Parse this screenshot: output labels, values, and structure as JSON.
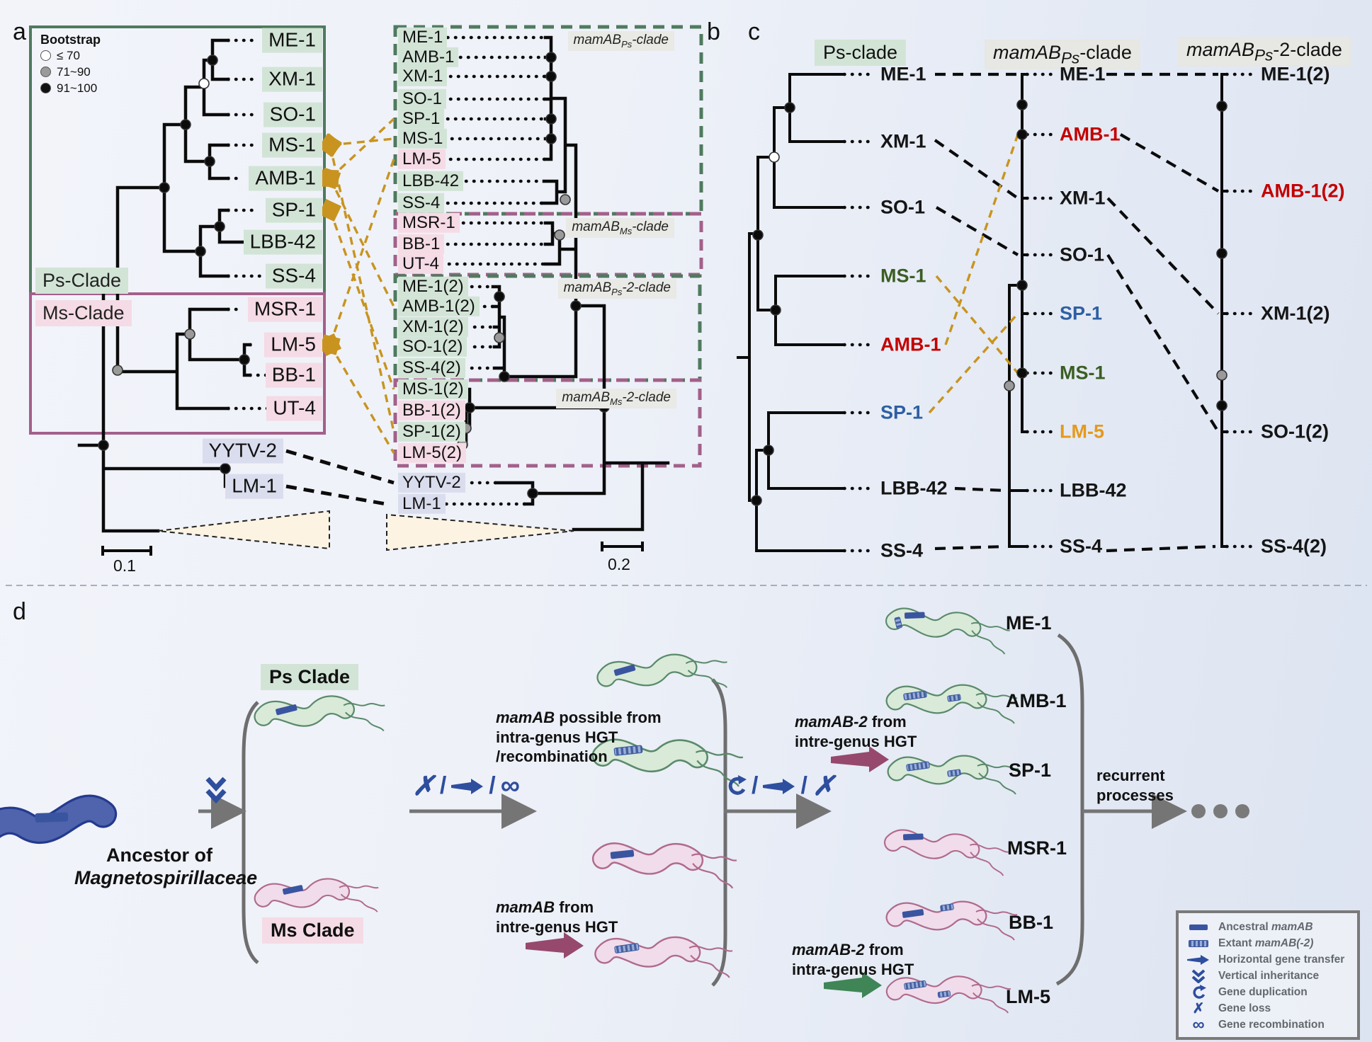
{
  "panel_letters": {
    "a": "a",
    "b": "b",
    "c": "c",
    "d": "d"
  },
  "bootstrap_legend": {
    "title": "Bootstrap",
    "items": [
      {
        "symbol": "open-circle",
        "label": "≤ 70"
      },
      {
        "symbol": "gray-circle",
        "label": "71~90"
      },
      {
        "symbol": "black-circle",
        "label": "91~100"
      }
    ]
  },
  "panel_a": {
    "clade_boxes": [
      {
        "label": "Ps-Clade",
        "bg": "green"
      },
      {
        "label": "Ms-Clade",
        "bg": "pink"
      }
    ],
    "tips": [
      {
        "label": "ME-1",
        "bg": "green"
      },
      {
        "label": "XM-1",
        "bg": "green"
      },
      {
        "label": "SO-1",
        "bg": "green"
      },
      {
        "label": "MS-1",
        "bg": "green"
      },
      {
        "label": "AMB-1",
        "bg": "green"
      },
      {
        "label": "SP-1",
        "bg": "green"
      },
      {
        "label": "LBB-42",
        "bg": "green"
      },
      {
        "label": "SS-4",
        "bg": "green"
      },
      {
        "label": "MSR-1",
        "bg": "pink"
      },
      {
        "label": "LM-5",
        "bg": "pink"
      },
      {
        "label": "BB-1",
        "bg": "pink"
      },
      {
        "label": "UT-4",
        "bg": "pink"
      },
      {
        "label": "YYTV-2",
        "bg": "lav"
      },
      {
        "label": "LM-1",
        "bg": "lav"
      }
    ],
    "scale_label": "0.1"
  },
  "panel_b": {
    "clade_labels": [
      [
        {
          "t": "mamAB",
          "i": true
        },
        {
          "t": "Ps",
          "sub": true
        },
        {
          "t": "-clade",
          "i": true
        }
      ],
      [
        {
          "t": "mamAB",
          "i": true
        },
        {
          "t": "Ms",
          "sub": true
        },
        {
          "t": "-clade"
        }
      ],
      [
        {
          "t": "mamAB",
          "i": true
        },
        {
          "t": "Ps",
          "sub": true
        },
        {
          "t": "-2-clade",
          "i": true
        }
      ],
      [
        {
          "t": "mamAB",
          "i": true
        },
        {
          "t": "Ms",
          "sub": true
        },
        {
          "t": "-2-clade"
        }
      ]
    ],
    "tips": [
      {
        "label": "ME-1",
        "bg": "green"
      },
      {
        "label": "AMB-1",
        "bg": "green"
      },
      {
        "label": "XM-1",
        "bg": "green"
      },
      {
        "label": "SO-1",
        "bg": "green"
      },
      {
        "label": "SP-1",
        "bg": "green"
      },
      {
        "label": "MS-1",
        "bg": "green"
      },
      {
        "label": "LM-5",
        "bg": "pink"
      },
      {
        "label": "LBB-42",
        "bg": "green"
      },
      {
        "label": "SS-4",
        "bg": "green"
      },
      {
        "label": "MSR-1",
        "bg": "pink"
      },
      {
        "label": "BB-1",
        "bg": "pink"
      },
      {
        "label": "UT-4",
        "bg": "pink"
      },
      {
        "label": "ME-1(2)",
        "bg": "green"
      },
      {
        "label": "AMB-1(2)",
        "bg": "green"
      },
      {
        "label": "XM-1(2)",
        "bg": "green"
      },
      {
        "label": "SO-1(2)",
        "bg": "green"
      },
      {
        "label": "SS-4(2)",
        "bg": "green"
      },
      {
        "label": "MS-1(2)",
        "bg": "green"
      },
      {
        "label": "BB-1(2)",
        "bg": "pink"
      },
      {
        "label": "SP-1(2)",
        "bg": "green"
      },
      {
        "label": "LM-5(2)",
        "bg": "pink"
      },
      {
        "label": "YYTV-2",
        "bg": "lav"
      },
      {
        "label": "LM-1",
        "bg": "lav"
      }
    ],
    "scale_label": "0.2"
  },
  "panel_c": {
    "headers": [
      {
        "parts": [
          {
            "t": "Ps-clade"
          }
        ],
        "bg": "green"
      },
      {
        "parts": [
          {
            "t": "mamAB",
            "i": true
          },
          {
            "t": "Ps",
            "sub": true
          },
          {
            "t": "-clade"
          }
        ],
        "bg": "gray"
      },
      {
        "parts": [
          {
            "t": "mamAB",
            "i": true
          },
          {
            "t": "Ps",
            "sub": true
          },
          {
            "t": "-2-clade"
          }
        ],
        "bg": "gray"
      }
    ],
    "col1": [
      {
        "label": "ME-1",
        "color": "black"
      },
      {
        "label": "XM-1",
        "color": "black"
      },
      {
        "label": "SO-1",
        "color": "black"
      },
      {
        "label": "MS-1",
        "color": "green"
      },
      {
        "label": "AMB-1",
        "color": "red"
      },
      {
        "label": "SP-1",
        "color": "blue"
      },
      {
        "label": "LBB-42",
        "color": "black"
      },
      {
        "label": "SS-4",
        "color": "black"
      }
    ],
    "col2": [
      {
        "label": "ME-1",
        "color": "black"
      },
      {
        "label": "AMB-1",
        "color": "red"
      },
      {
        "label": "XM-1",
        "color": "black"
      },
      {
        "label": "SO-1",
        "color": "black"
      },
      {
        "label": "SP-1",
        "color": "blue"
      },
      {
        "label": "MS-1",
        "color": "green"
      },
      {
        "label": "LM-5",
        "color": "orange"
      },
      {
        "label": "LBB-42",
        "color": "black"
      },
      {
        "label": "SS-4",
        "color": "black"
      }
    ],
    "col3": [
      {
        "label": "ME-1(2)",
        "color": "black"
      },
      {
        "label": "AMB-1(2)",
        "color": "red"
      },
      {
        "label": "XM-1(2)",
        "color": "black"
      },
      {
        "label": "SO-1(2)",
        "color": "black"
      },
      {
        "label": "SS-4(2)",
        "color": "black"
      }
    ]
  },
  "panel_d": {
    "ancestor_label": {
      "line1": "Ancestor of",
      "line2": "Magnetospirillaceae"
    },
    "clade_labels": [
      {
        "text": "Ps Clade",
        "bg": "green"
      },
      {
        "text": "Ms Clade",
        "bg": "pink"
      }
    ],
    "annotations": {
      "hgt1": [
        [
          {
            "t": "mamAB",
            "i": true
          },
          {
            "t": " possible from"
          }
        ],
        [
          {
            "t": "intra-genus HGT"
          }
        ],
        [
          {
            "t": "/recombination"
          }
        ]
      ],
      "hgt2": [
        [
          {
            "t": "mamAB",
            "i": true
          },
          {
            "t": " from"
          }
        ],
        [
          {
            "t": "intre-genus HGT"
          }
        ]
      ],
      "hgt3": [
        [
          {
            "t": "mamAB-2",
            "i": true
          },
          {
            "t": " from"
          }
        ],
        [
          {
            "t": "intre-genus HGT"
          }
        ]
      ],
      "hgt4": [
        [
          {
            "t": "mamAB-2",
            "i": true
          },
          {
            "t": " from"
          }
        ],
        [
          {
            "t": "intra-genus HGT"
          }
        ]
      ],
      "recurrent": [
        [
          {
            "t": "recurrent"
          }
        ],
        [
          {
            "t": "processes"
          }
        ]
      ]
    },
    "strain_labels": [
      "ME-1",
      "AMB-1",
      "SP-1",
      "MSR-1",
      "BB-1",
      "LM-5"
    ],
    "symbols": {
      "gene_loss": "✗",
      "gene_recombination": "∞",
      "slash": "/"
    },
    "legend": {
      "items": [
        {
          "icon": "ancestral-bar-icon",
          "parts": [
            {
              "t": "Ancestral "
            },
            {
              "t": "mamAB",
              "i": true
            }
          ]
        },
        {
          "icon": "extant-bar-icon",
          "parts": [
            {
              "t": "Extant "
            },
            {
              "t": "mamAB(-2)",
              "i": true
            }
          ]
        },
        {
          "icon": "hgt-arrow-icon",
          "parts": [
            {
              "t": "Horizontal gene transfer"
            }
          ]
        },
        {
          "icon": "vertical-inheritance-icon",
          "parts": [
            {
              "t": "Vertical inheritance"
            }
          ]
        },
        {
          "icon": "gene-duplication-icon",
          "parts": [
            {
              "t": "Gene duplication"
            }
          ]
        },
        {
          "icon": "gene-loss-icon",
          "parts": [
            {
              "t": "Gene loss"
            }
          ]
        },
        {
          "icon": "gene-recombination-icon",
          "parts": [
            {
              "t": "Gene recombination"
            }
          ]
        }
      ]
    }
  },
  "colors": {
    "green_bg": "#d2e4d6",
    "pink_bg": "#f5dbe5",
    "lav_bg": "#dadded",
    "ps_box": "#4f7a5e",
    "ms_box": "#a2608a",
    "gold": "#c8941f",
    "red_text": "#c30000",
    "green_text": "#3b5e23",
    "blue_text": "#2e5fa3",
    "orange_text": "#e5991d",
    "gene_blue": "#3a55a0",
    "symbol_blue": "#2e4e9e",
    "maroon_arrow": "#96496d",
    "green_arrow": "#3f8556",
    "gray": "#757575",
    "triangle_fill": "#fcf3e2"
  }
}
